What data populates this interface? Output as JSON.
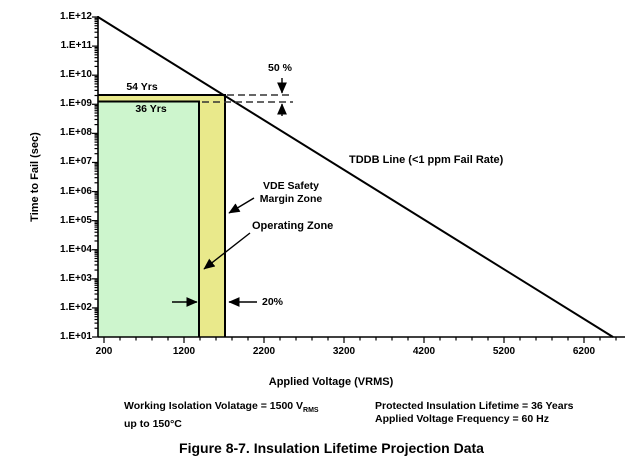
{
  "caption": "Figure 8-7. Insulation Lifetime Projection Data",
  "colors": {
    "operating_zone_fill": "#cdf5cd",
    "vde_zone_fill": "#e9e98b",
    "line_color": "#000000",
    "background": "#ffffff"
  },
  "notes": {
    "left_line1_text": "Working Isolation Volatage = 1500 V",
    "left_line1_sub": "RMS",
    "left_line2": "up to 150°C",
    "right_line1": "Protected Insulation Lifetime = 36 Years",
    "right_line2": "Applied Voltage Frequency = 60 Hz"
  },
  "chart_data": {
    "type": "line",
    "title": "Figure 8-7. Insulation Lifetime Projection Data",
    "xlabel": "Applied Voltage (VRMS)",
    "ylabel": "Time to Fail (sec)",
    "grid": false,
    "legend": "none",
    "x_axis": {
      "min": 200,
      "max": 6700,
      "major_tick_interval": 1000,
      "minor_tick_interval": 200,
      "tick_labels": [
        "200",
        "1200",
        "2200",
        "3200",
        "4200",
        "5200",
        "6200"
      ]
    },
    "y_axis": {
      "scale": "log",
      "min": 10,
      "max": 1000000000000,
      "tick_labels": [
        "1.E+12",
        "1.E+11",
        "1.E+10",
        "1.E+09",
        "1.E+08",
        "1.E+07",
        "1.E+06",
        "1.E+05",
        "1.E+04",
        "1.E+03",
        "1.E+02",
        "1.E+01"
      ]
    },
    "series": [
      {
        "name": "TDDB Line (<1 ppm Fail Rate)",
        "type": "line",
        "points": [
          [
            200,
            1000000000000
          ],
          [
            6560,
            10
          ]
        ]
      }
    ],
    "zones": [
      {
        "name": "Operating Zone",
        "fill": "#cdf5cd",
        "x_range_vrms": [
          200,
          1500
        ],
        "y_top_sec": 1140000000,
        "lifetime_label": "36 Yrs",
        "lifetime_years": 36
      },
      {
        "name": "VDE Safety Margin Zone",
        "fill": "#e9e98b",
        "x_range_vrms": [
          200,
          1800
        ],
        "y_top_sec": 1700000000,
        "lifetime_label": "54 Yrs",
        "lifetime_years": 54,
        "voltage_margin_label": "20%",
        "lifetime_margin_label": "50 %"
      }
    ],
    "annotations": {
      "zone54": "54 Yrs",
      "zone36": "36 Yrs",
      "pct50": "50 %",
      "tddb": "TDDB Line (<1 ppm Fail Rate)",
      "vde1": "VDE Safety",
      "vde2": "Margin Zone",
      "operating": "Operating Zone",
      "pct20": "20%"
    }
  }
}
